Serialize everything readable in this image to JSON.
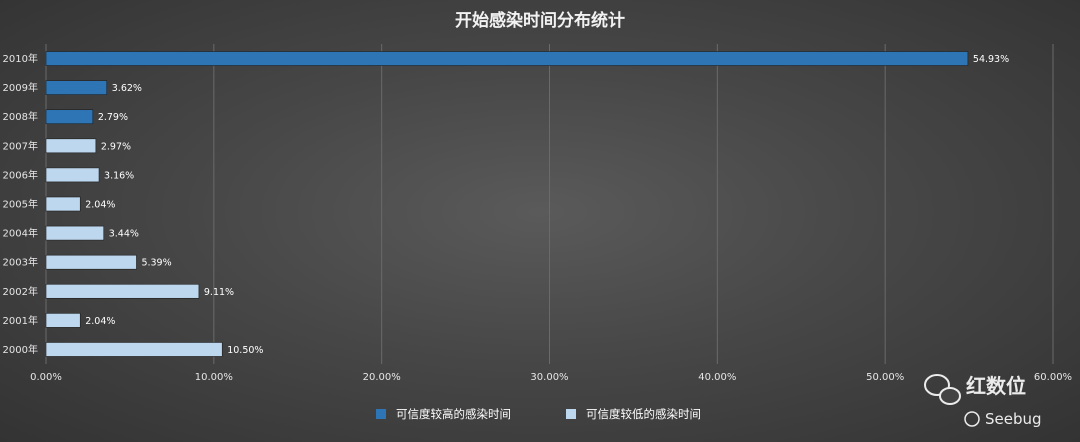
{
  "chart_data": {
    "type": "bar",
    "orientation": "horizontal",
    "title": "开始感染时间分布统计",
    "categories": [
      "2010年",
      "2009年",
      "2008年",
      "2007年",
      "2006年",
      "2005年",
      "2004年",
      "2003年",
      "2002年",
      "2001年",
      "2000年"
    ],
    "series": [
      {
        "name": "可信度较高的感染时间",
        "color": "#2e75b6",
        "values": [
          54.93,
          3.62,
          2.79,
          null,
          null,
          null,
          null,
          null,
          null,
          null,
          null
        ]
      },
      {
        "name": "可信度较低的感染时间",
        "color": "#bdd7ee",
        "values": [
          null,
          null,
          null,
          2.97,
          3.16,
          2.04,
          3.44,
          5.39,
          9.11,
          2.04,
          10.5
        ]
      }
    ],
    "data_labels": [
      "54.93%",
      "3.62%",
      "2.79%",
      "2.97%",
      "3.16%",
      "2.04%",
      "3.44%",
      "5.39%",
      "9.11%",
      "2.04%",
      "10.50%"
    ],
    "xlim": [
      0,
      60
    ],
    "x_ticks": [
      "0.00%",
      "10.00%",
      "20.00%",
      "30.00%",
      "40.00%",
      "50.00%",
      "60.00%"
    ],
    "grid": true,
    "legend_position": "bottom"
  },
  "watermark": {
    "brand": "红数位",
    "sub": "Seebug"
  }
}
